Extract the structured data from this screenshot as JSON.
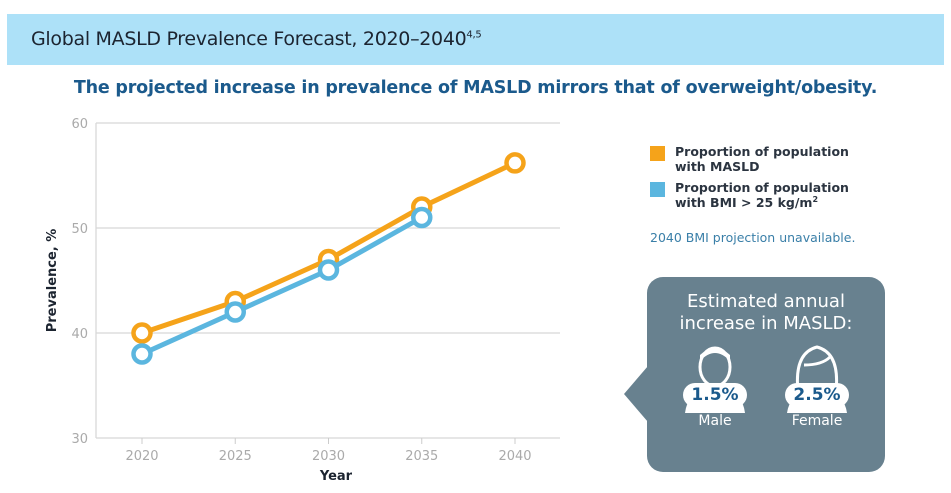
{
  "header": {
    "title": "Global MASLD Prevalence Forecast, 2020–2040",
    "superscript": "4,5"
  },
  "subtitle": "The projected increase in prevalence of MASLD mirrors that of overweight/obesity.",
  "chart_data": {
    "type": "line",
    "xlabel": "Year",
    "ylabel": "Prevalence, %",
    "categories": [
      "2020",
      "2025",
      "2030",
      "2035",
      "2040"
    ],
    "ylim": [
      30,
      60
    ],
    "yticks": [
      "30",
      "40",
      "50",
      "60"
    ],
    "grid": true,
    "legend_placement": "right",
    "series": [
      {
        "name": "Proportion of population with MASLD",
        "color": "#f5a31a",
        "values": [
          40,
          43,
          47,
          52,
          56.2
        ]
      },
      {
        "name": "Proportion of population with BMI > 25 kg/m²",
        "color": "#5bb6df",
        "values": [
          38,
          42,
          46,
          51,
          null
        ]
      }
    ]
  },
  "legend": {
    "items": [
      {
        "line1": "Proportion of population",
        "line2": "with MASLD",
        "color": "#f5a31a"
      },
      {
        "line1": "Proportion of population",
        "line2": "with BMI > 25 kg/m",
        "sup": "2",
        "color": "#5bb6df"
      }
    ]
  },
  "note": "2040 BMI projection unavailable.",
  "callout": {
    "title_line1": "Estimated annual",
    "title_line2": "increase in MASLD:",
    "male": {
      "value": "1.5%",
      "label": "Male",
      "icon": "male-person-icon"
    },
    "female": {
      "value": "2.5%",
      "label": "Female",
      "icon": "female-person-icon"
    },
    "bg": "#68818f"
  }
}
